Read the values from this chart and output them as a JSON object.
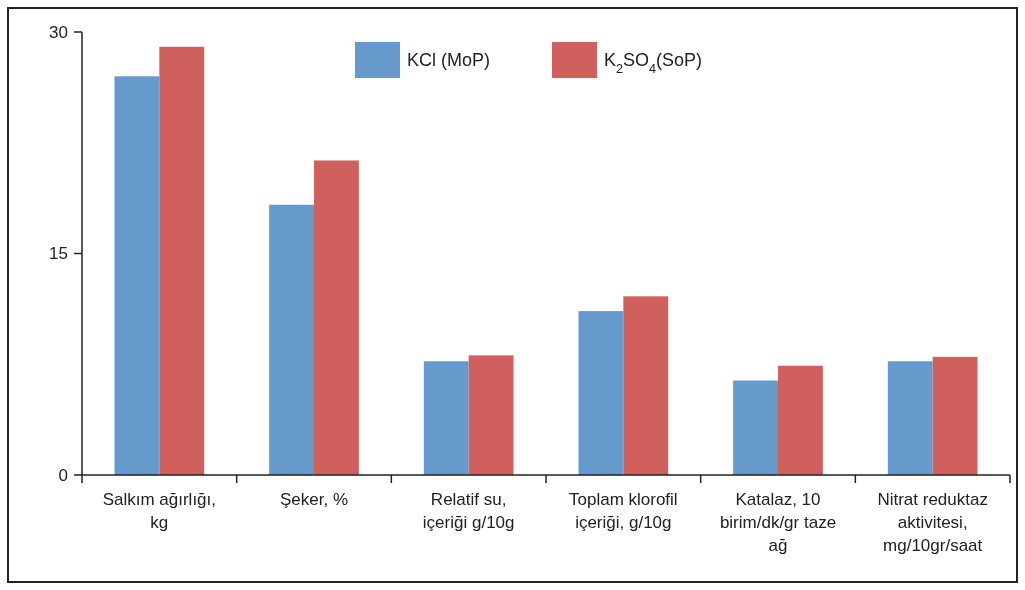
{
  "chart_data": {
    "type": "bar",
    "categories": [
      "Salkım ağırlığı, kg",
      "Şeker, %",
      "Relatif su, içeriği g/10g",
      "Toplam klorofil içeriği, g/10g",
      "Katalaz, 10 birim/dk/gr taze ağ",
      "Nitrat reduktaz aktivitesi, mg/10gr/saat"
    ],
    "series": [
      {
        "name": "KCl (MoP)",
        "color": "#6699cc",
        "values": [
          27.0,
          18.3,
          7.7,
          11.1,
          6.4,
          7.7
        ]
      },
      {
        "name": "K$_{2}$SO$_{4}$(SoP)",
        "color": "#cf605d",
        "values": [
          29.0,
          21.3,
          8.1,
          12.1,
          7.4,
          8.0
        ]
      }
    ],
    "ylim": [
      0,
      30
    ],
    "yticks": [
      0,
      15,
      30
    ],
    "grid": false,
    "legend": "top"
  }
}
